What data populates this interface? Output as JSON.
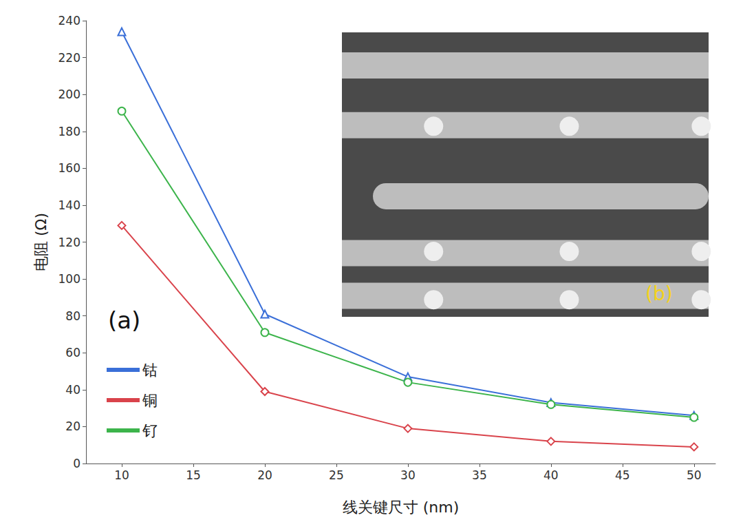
{
  "chart_data": {
    "type": "line",
    "x_label": "线关键尺寸 (nm)",
    "y_label": "电阻 (Ω)",
    "annotations": [
      "(a)",
      "(b)"
    ],
    "x": [
      10,
      20,
      30,
      40,
      50
    ],
    "series": [
      {
        "name": "钴",
        "color": "#3a6fd8",
        "marker": "triangle",
        "values": [
          234,
          81,
          47,
          33,
          26
        ]
      },
      {
        "name": "铜",
        "color": "#d9434b",
        "marker": "diamond",
        "values": [
          129,
          39,
          19,
          12,
          9
        ]
      },
      {
        "name": "钌",
        "color": "#3cb44b",
        "marker": "circle",
        "values": [
          191,
          71,
          44,
          32,
          25
        ]
      }
    ],
    "xlim": [
      7.5,
      51.5
    ],
    "xticks": [
      10,
      15,
      20,
      25,
      30,
      35,
      40,
      45,
      50
    ],
    "ylim": [
      0,
      240
    ],
    "yticks": [
      0,
      20,
      40,
      60,
      80,
      100,
      120,
      140,
      160,
      180,
      200,
      220,
      240
    ],
    "grid": false,
    "legend": "lower left"
  }
}
